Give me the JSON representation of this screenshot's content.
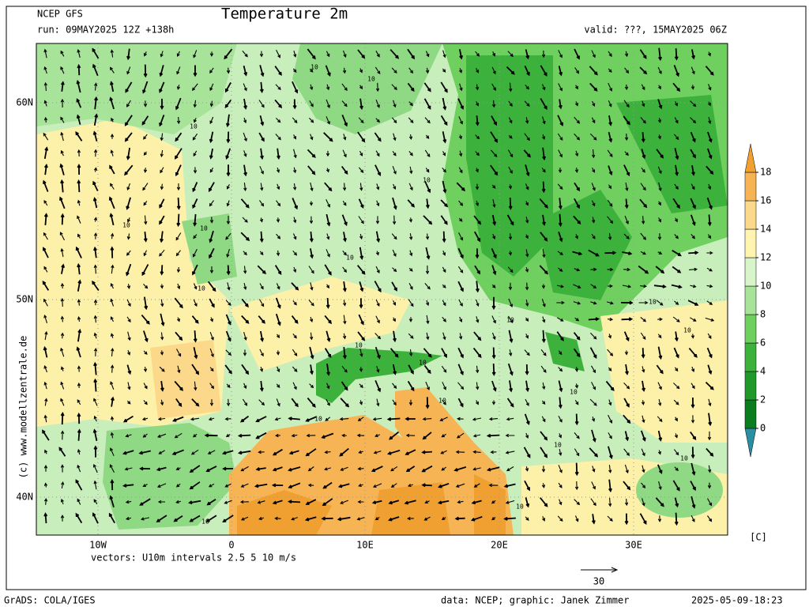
{
  "header": {
    "model": "NCEP GFS",
    "title": "Temperature 2m",
    "run": "run: 09MAY2025 12Z +138h",
    "valid": "valid: ???, 15MAY2025 06Z"
  },
  "map": {
    "lat_labels": [
      "60N",
      "50N",
      "40N"
    ],
    "lon_labels": [
      "10W",
      "0",
      "10E",
      "20E",
      "30E"
    ],
    "contour_labels": [
      "10",
      "10",
      "10",
      "10",
      "10",
      "10",
      "10",
      "10",
      "10",
      "10",
      "10",
      "10",
      "10",
      "10",
      "10",
      "10",
      "10",
      "10",
      "10",
      "10"
    ]
  },
  "colorbar": {
    "ticks": [
      0,
      2,
      4,
      6,
      8,
      10,
      12,
      14,
      16,
      18
    ],
    "unit": "[C]",
    "colors": [
      "#2a8fa0",
      "#0a7d1e",
      "#1f9a2a",
      "#3cb23c",
      "#6fcf5f",
      "#a8e39a",
      "#d7f5c8",
      "#fff5b0",
      "#fcd98a",
      "#f7b455",
      "#f0a030"
    ]
  },
  "vectors": {
    "caption": "vectors: U10m intervals 2.5 5 10 m/s",
    "reference": "30"
  },
  "credit": "(c) www.modellzentrale.de",
  "footer": {
    "software": "GrADS: COLA/IGES",
    "source": "data: NCEP; graphic: Janek Zimmer",
    "timestamp": "2025-05-09-18:23"
  }
}
